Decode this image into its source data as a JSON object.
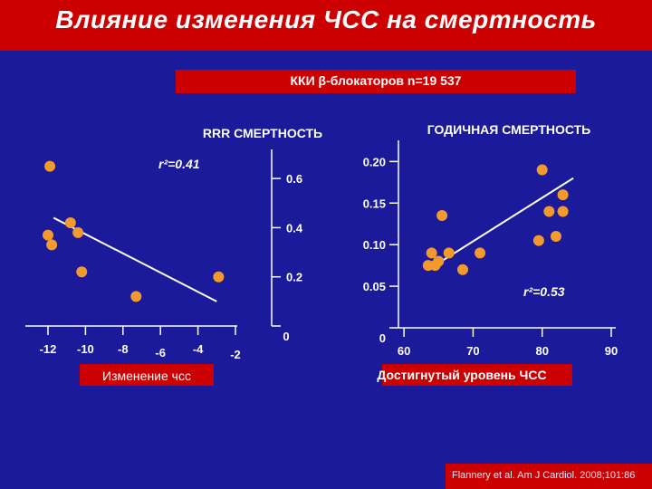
{
  "header": {
    "title": "Влияние изменения ЧСС на смертность",
    "subtitle": "ККИ β-блокаторов n=19 537"
  },
  "footer": {
    "citation": "Flannery et al. Am J Cardiol. 2008;101:86"
  },
  "colors": {
    "background": "#1a1a9a",
    "title_bar": "#cc0000",
    "point": "#f39a2e",
    "line": "#ffffff"
  },
  "chart_data": [
    {
      "type": "scatter",
      "title": "RRR СМЕРТНОСТЬ",
      "xlabel": "Изменение чсс",
      "ylabel": "",
      "annotation": "r²=0.41",
      "xlim": [
        -12,
        -2
      ],
      "ylim": [
        0,
        0.7
      ],
      "x_ticks": [
        -12,
        -10,
        -8,
        -6,
        -4,
        -2
      ],
      "x_tick_labels": [
        "-12",
        "-10",
        "-8",
        "-6",
        "-4",
        "-2"
      ],
      "y_ticks": [
        0,
        0.2,
        0.4,
        0.6
      ],
      "y_tick_labels": [
        "0",
        "0.2",
        "0.4",
        "0.6"
      ],
      "points": [
        {
          "x": -11.9,
          "y": 0.65
        },
        {
          "x": -10.8,
          "y": 0.42
        },
        {
          "x": -10.4,
          "y": 0.38
        },
        {
          "x": -12.0,
          "y": 0.37
        },
        {
          "x": -11.8,
          "y": 0.33
        },
        {
          "x": -10.2,
          "y": 0.22
        },
        {
          "x": -7.3,
          "y": 0.12
        },
        {
          "x": -2.9,
          "y": 0.2
        }
      ],
      "trend": [
        {
          "x": -11.7,
          "y": 0.44
        },
        {
          "x": -3.0,
          "y": 0.1
        }
      ]
    },
    {
      "type": "scatter",
      "title": "ГОДИЧНАЯ СМЕРТНОСТЬ",
      "xlabel": "Достигнутый уровень ЧСС",
      "ylabel": "",
      "annotation": "r²=0.53",
      "xlim": [
        55,
        90
      ],
      "ylim": [
        0,
        0.22
      ],
      "x_ticks": [
        60,
        70,
        80,
        90
      ],
      "x_tick_labels": [
        "60",
        "70",
        "80",
        "90"
      ],
      "y_ticks": [
        0,
        0.05,
        0.1,
        0.15,
        0.2
      ],
      "y_tick_labels": [
        "0",
        "0.05",
        "0.10",
        "0.15",
        "0.20"
      ],
      "points": [
        {
          "x": 80.0,
          "y": 0.19
        },
        {
          "x": 83.0,
          "y": 0.16
        },
        {
          "x": 81.0,
          "y": 0.14
        },
        {
          "x": 83.0,
          "y": 0.14
        },
        {
          "x": 65.5,
          "y": 0.135
        },
        {
          "x": 82.0,
          "y": 0.11
        },
        {
          "x": 79.5,
          "y": 0.105
        },
        {
          "x": 64.0,
          "y": 0.09
        },
        {
          "x": 66.5,
          "y": 0.09
        },
        {
          "x": 71.0,
          "y": 0.09
        },
        {
          "x": 65.0,
          "y": 0.08
        },
        {
          "x": 63.5,
          "y": 0.075
        },
        {
          "x": 64.5,
          "y": 0.075
        },
        {
          "x": 68.5,
          "y": 0.07
        }
      ],
      "trend": [
        {
          "x": 63.5,
          "y": 0.07
        },
        {
          "x": 84.5,
          "y": 0.18
        }
      ]
    }
  ]
}
